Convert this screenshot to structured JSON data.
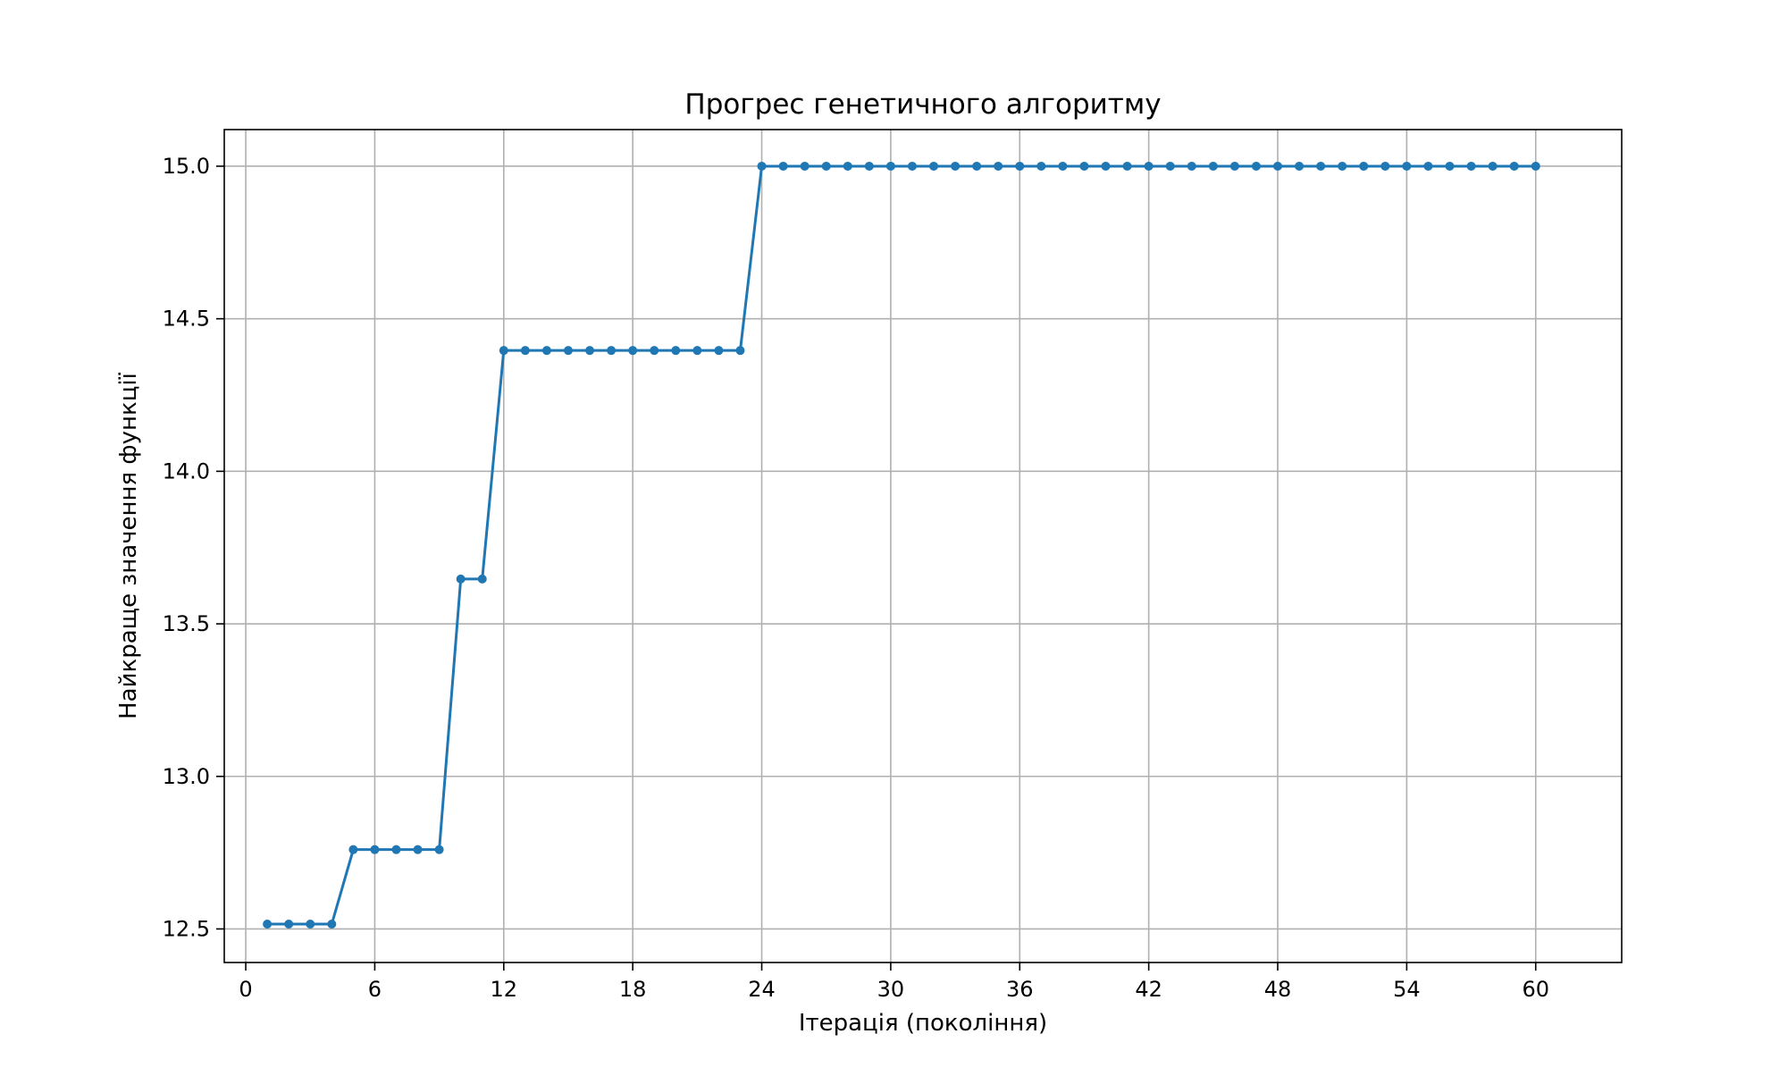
{
  "chart_data": {
    "type": "line",
    "title": "Прогрес генетичного алгоритму",
    "xlabel": "Ітерація (покоління)",
    "ylabel": "Найкраще значення функції",
    "xlim": [
      -1,
      64
    ],
    "ylim": [
      12.39,
      15.12
    ],
    "xticks": [
      0,
      6,
      12,
      18,
      24,
      30,
      36,
      42,
      48,
      54,
      60
    ],
    "yticks": [
      12.5,
      13.0,
      13.5,
      14.0,
      14.5,
      15.0
    ],
    "ytick_labels": [
      "12.5",
      "13.0",
      "13.5",
      "14.0",
      "14.5",
      "15.0"
    ],
    "grid": true,
    "marker": "circle",
    "line_color": "#1f77b4",
    "grid_color": "#b0b0b0",
    "series": [
      {
        "x": [
          1,
          2,
          3,
          4,
          5,
          6,
          7,
          8,
          9,
          10,
          11,
          12,
          13,
          14,
          15,
          16,
          17,
          18,
          19,
          20,
          21,
          22,
          23,
          24,
          25,
          26,
          27,
          28,
          29,
          30,
          31,
          32,
          33,
          34,
          35,
          36,
          37,
          38,
          39,
          40,
          41,
          42,
          43,
          44,
          45,
          46,
          47,
          48,
          49,
          50,
          51,
          52,
          53,
          54,
          55,
          56,
          57,
          58,
          59,
          60
        ],
        "values": [
          12.516,
          12.516,
          12.516,
          12.516,
          12.76,
          12.76,
          12.76,
          12.76,
          12.76,
          13.647,
          13.647,
          14.396,
          14.396,
          14.396,
          14.396,
          14.396,
          14.396,
          14.396,
          14.396,
          14.396,
          14.396,
          14.396,
          14.396,
          15.0,
          15.0,
          15.0,
          15.0,
          15.0,
          15.0,
          15.0,
          15.0,
          15.0,
          15.0,
          15.0,
          15.0,
          15.0,
          15.0,
          15.0,
          15.0,
          15.0,
          15.0,
          15.0,
          15.0,
          15.0,
          15.0,
          15.0,
          15.0,
          15.0,
          15.0,
          15.0,
          15.0,
          15.0,
          15.0,
          15.0,
          15.0,
          15.0,
          15.0,
          15.0,
          15.0,
          15.0
        ]
      }
    ]
  }
}
